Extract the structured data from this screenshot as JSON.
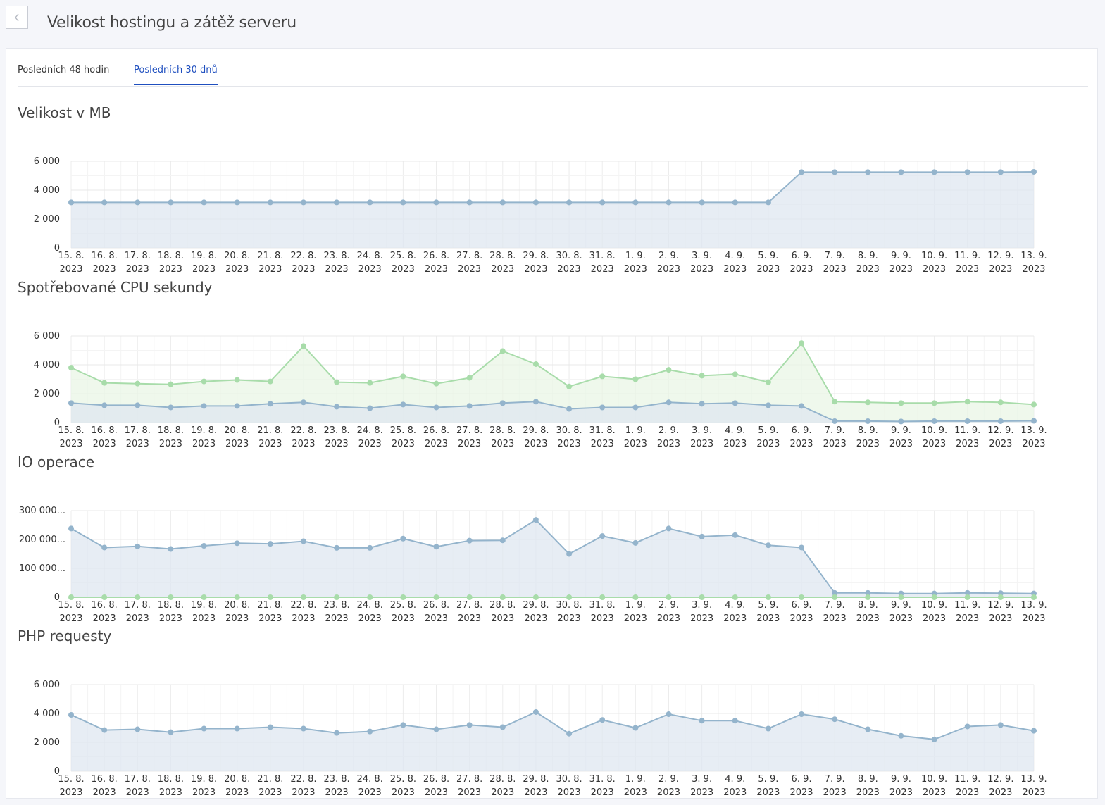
{
  "header": {
    "title": "Velikost hostingu a zátěž serveru",
    "back_icon": "chevron-left-icon"
  },
  "tabs": [
    {
      "label": "Posledních 48 hodin",
      "active": false
    },
    {
      "label": "Posledních 30 dnů",
      "active": true
    }
  ],
  "colors": {
    "blue_line": "#94b4cc",
    "blue_fill": "#dfe7f0",
    "green_line": "#a8dcaa",
    "green_fill": "#e9f5e6"
  },
  "chart_data": [
    {
      "type": "area",
      "title": "Velikost v MB",
      "ylim": [
        0,
        6000
      ],
      "yticks": [
        "0",
        "2 000",
        "4 000",
        "6 000"
      ],
      "categories": [
        "15. 8.|2023",
        "16. 8.|2023",
        "17. 8.|2023",
        "18. 8.|2023",
        "19. 8.|2023",
        "20. 8.|2023",
        "21. 8.|2023",
        "22. 8.|2023",
        "23. 8.|2023",
        "24. 8.|2023",
        "25. 8.|2023",
        "26. 8.|2023",
        "27. 8.|2023",
        "28. 8.|2023",
        "29. 8.|2023",
        "30. 8.|2023",
        "31. 8.|2023",
        "1. 9.|2023",
        "2. 9.|2023",
        "3. 9.|2023",
        "4. 9.|2023",
        "5. 9.|2023",
        "6. 9.|2023",
        "7. 9.|2023",
        "8. 9.|2023",
        "9. 9.|2023",
        "10. 9.|2023",
        "11. 9.|2023",
        "12. 9.|2023",
        "13. 9.|2023"
      ],
      "grid": true,
      "series": [
        {
          "color": "blue",
          "values": [
            3150,
            3150,
            3150,
            3150,
            3150,
            3150,
            3150,
            3150,
            3150,
            3150,
            3150,
            3150,
            3150,
            3150,
            3150,
            3150,
            3150,
            3150,
            3150,
            3150,
            3150,
            3150,
            5250,
            5250,
            5250,
            5250,
            5250,
            5250,
            5250,
            5270
          ]
        }
      ]
    },
    {
      "type": "area",
      "title": "Spotřebované CPU sekundy",
      "ylim": [
        0,
        6000
      ],
      "yticks": [
        "0",
        "2 000",
        "4 000",
        "6 000"
      ],
      "categories": [
        "15. 8.|2023",
        "16. 8.|2023",
        "17. 8.|2023",
        "18. 8.|2023",
        "19. 8.|2023",
        "20. 8.|2023",
        "21. 8.|2023",
        "22. 8.|2023",
        "23. 8.|2023",
        "24. 8.|2023",
        "25. 8.|2023",
        "26. 8.|2023",
        "27. 8.|2023",
        "28. 8.|2023",
        "29. 8.|2023",
        "30. 8.|2023",
        "31. 8.|2023",
        "1. 9.|2023",
        "2. 9.|2023",
        "3. 9.|2023",
        "4. 9.|2023",
        "5. 9.|2023",
        "6. 9.|2023",
        "7. 9.|2023",
        "8. 9.|2023",
        "9. 9.|2023",
        "10. 9.|2023",
        "11. 9.|2023",
        "12. 9.|2023",
        "13. 9.|2023"
      ],
      "grid": true,
      "series": [
        {
          "color": "green",
          "values": [
            3800,
            2750,
            2700,
            2650,
            2850,
            2950,
            2850,
            5300,
            2800,
            2750,
            3200,
            2700,
            3100,
            4950,
            4050,
            2500,
            3200,
            3000,
            3650,
            3250,
            3350,
            2800,
            5500,
            1450,
            1400,
            1350,
            1350,
            1450,
            1400,
            1250
          ]
        },
        {
          "color": "blue",
          "values": [
            1350,
            1200,
            1200,
            1050,
            1150,
            1150,
            1300,
            1400,
            1100,
            1000,
            1250,
            1050,
            1150,
            1350,
            1450,
            950,
            1050,
            1050,
            1400,
            1300,
            1350,
            1200,
            1150,
            100,
            100,
            80,
            100,
            100,
            100,
            120
          ]
        }
      ]
    },
    {
      "type": "area",
      "title": "IO operace",
      "ylim": [
        0,
        300000
      ],
      "yticks": [
        "0",
        "100 000...",
        "200 000...",
        "300 000..."
      ],
      "categories": [
        "15. 8.|2023",
        "16. 8.|2023",
        "17. 8.|2023",
        "18. 8.|2023",
        "19. 8.|2023",
        "20. 8.|2023",
        "21. 8.|2023",
        "22. 8.|2023",
        "23. 8.|2023",
        "24. 8.|2023",
        "25. 8.|2023",
        "26. 8.|2023",
        "27. 8.|2023",
        "28. 8.|2023",
        "29. 8.|2023",
        "30. 8.|2023",
        "31. 8.|2023",
        "1. 9.|2023",
        "2. 9.|2023",
        "3. 9.|2023",
        "4. 9.|2023",
        "5. 9.|2023",
        "6. 9.|2023",
        "7. 9.|2023",
        "8. 9.|2023",
        "9. 9.|2023",
        "10. 9.|2023",
        "11. 9.|2023",
        "12. 9.|2023",
        "13. 9.|2023"
      ],
      "grid": true,
      "series": [
        {
          "color": "blue",
          "values": [
            238000,
            172000,
            176000,
            167000,
            178000,
            187000,
            185000,
            194000,
            171000,
            171000,
            203000,
            175000,
            196000,
            197000,
            268000,
            150000,
            212000,
            188000,
            238000,
            210000,
            215000,
            180000,
            172000,
            15000,
            15000,
            13000,
            13000,
            15000,
            14000,
            13000
          ]
        },
        {
          "color": "green",
          "values": [
            0,
            0,
            0,
            0,
            0,
            0,
            0,
            0,
            0,
            0,
            0,
            0,
            0,
            0,
            0,
            0,
            0,
            0,
            0,
            0,
            0,
            0,
            0,
            0,
            0,
            0,
            0,
            0,
            0,
            0
          ]
        }
      ]
    },
    {
      "type": "area",
      "title": "PHP requesty",
      "ylim": [
        0,
        6000
      ],
      "yticks": [
        "0",
        "2 000",
        "4 000",
        "6 000"
      ],
      "categories": [
        "15. 8.|2023",
        "16. 8.|2023",
        "17. 8.|2023",
        "18. 8.|2023",
        "19. 8.|2023",
        "20. 8.|2023",
        "21. 8.|2023",
        "22. 8.|2023",
        "23. 8.|2023",
        "24. 8.|2023",
        "25. 8.|2023",
        "26. 8.|2023",
        "27. 8.|2023",
        "28. 8.|2023",
        "29. 8.|2023",
        "30. 8.|2023",
        "31. 8.|2023",
        "1. 9.|2023",
        "2. 9.|2023",
        "3. 9.|2023",
        "4. 9.|2023",
        "5. 9.|2023",
        "6. 9.|2023",
        "7. 9.|2023",
        "8. 9.|2023",
        "9. 9.|2023",
        "10. 9.|2023",
        "11. 9.|2023",
        "12. 9.|2023",
        "13. 9.|2023"
      ],
      "grid": true,
      "series": [
        {
          "color": "blue",
          "values": [
            3900,
            2850,
            2900,
            2700,
            2950,
            2950,
            3050,
            2950,
            2650,
            2750,
            3200,
            2900,
            3200,
            3050,
            4100,
            2600,
            3550,
            3000,
            3950,
            3500,
            3500,
            2950,
            3950,
            3600,
            2900,
            2450,
            2200,
            3100,
            3200,
            2800
          ]
        }
      ]
    }
  ]
}
